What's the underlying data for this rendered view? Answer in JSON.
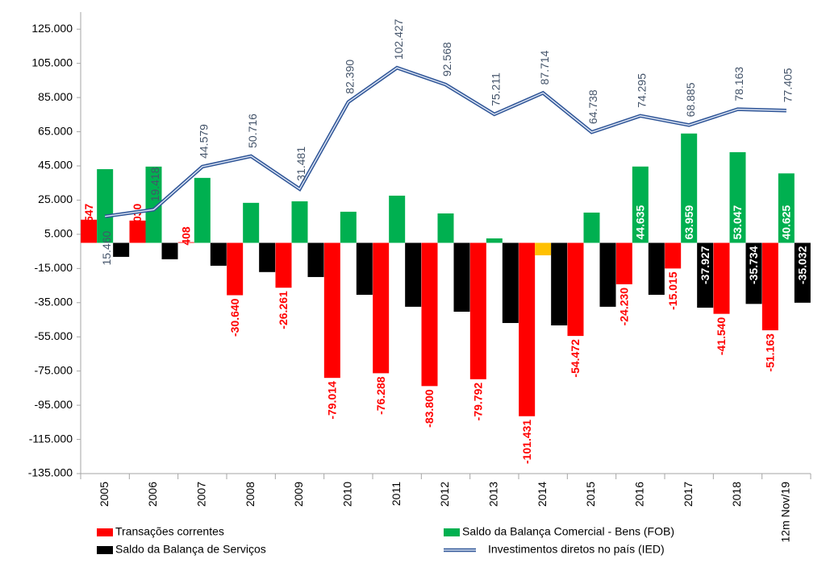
{
  "chart_data": {
    "type": "bar_line",
    "categories": [
      "2005",
      "2006",
      "2007",
      "2008",
      "2009",
      "2010",
      "2011",
      "2012",
      "2013",
      "2014",
      "2015",
      "2016",
      "2017",
      "2018",
      "12m Nov/19"
    ],
    "ylim": [
      -135000,
      135000
    ],
    "yticks": [
      {
        "value": 125000,
        "label": "125.000"
      },
      {
        "value": 105000,
        "label": "105.000"
      },
      {
        "value": 85000,
        "label": "85.000"
      },
      {
        "value": 65000,
        "label": "65.000"
      },
      {
        "value": 45000,
        "label": "45.000"
      },
      {
        "value": 25000,
        "label": "25.000"
      },
      {
        "value": 5000,
        "label": "5.000"
      },
      {
        "value": -15000,
        "label": "-15.000"
      },
      {
        "value": -35000,
        "label": "-35.000"
      },
      {
        "value": -55000,
        "label": "-55.000"
      },
      {
        "value": -75000,
        "label": "-75.000"
      },
      {
        "value": -95000,
        "label": "-95.000"
      },
      {
        "value": -115000,
        "label": "-115.000"
      },
      {
        "value": -135000,
        "label": "-135.000"
      }
    ],
    "grid": false,
    "series": [
      {
        "name": "Transações correntes",
        "type": "bar",
        "color": "#ff0000",
        "label_color": "#ff0000",
        "values": [
          13547,
          13030,
          408,
          -30640,
          -26261,
          -79014,
          -76288,
          -83800,
          -79792,
          -101431,
          -54472,
          -24230,
          -15015,
          -41540,
          -51163
        ],
        "value_labels": [
          "13.547",
          "13.030",
          "408",
          "-30.640",
          "-26.261",
          "-79.014",
          "-76.288",
          "-83.800",
          "-79.792",
          "-101.431",
          "-54.472",
          "-24.230",
          "-15.015",
          "-41.540",
          "-51.163"
        ]
      },
      {
        "name": "Saldo da Balança Comercial - Bens (FOB)",
        "type": "bar",
        "color": "#00b050",
        "label_color": "#ffffff",
        "colors": [
          "#00b050",
          "#00b050",
          "#00b050",
          "#00b050",
          "#00b050",
          "#00b050",
          "#00b050",
          "#00b050",
          "#00b050",
          "#ffc000",
          "#00b050",
          "#00b050",
          "#00b050",
          "#00b050",
          "#00b050"
        ],
        "values": [
          43100,
          44600,
          38000,
          23400,
          24300,
          18200,
          27600,
          17200,
          2600,
          -7300,
          17700,
          44635,
          63959,
          53047,
          40625
        ],
        "value_labels": [
          null,
          null,
          null,
          null,
          null,
          null,
          null,
          null,
          null,
          null,
          null,
          "44.635",
          "63.959",
          "53.047",
          "40.625"
        ]
      },
      {
        "name": "Saldo da Balança de Serviços",
        "type": "bar",
        "color": "#000000",
        "label_color": "#ffffff",
        "values": [
          -8200,
          -9600,
          -13400,
          -17100,
          -20000,
          -30400,
          -37400,
          -40300,
          -46900,
          -48300,
          -37400,
          -30400,
          -37927,
          -35734,
          -35032
        ],
        "value_labels": [
          null,
          null,
          null,
          null,
          null,
          null,
          null,
          null,
          null,
          null,
          null,
          null,
          "-37.927",
          "-35.734",
          "-35.032"
        ]
      },
      {
        "name": "Investimentos diretos no país (IED)",
        "type": "line",
        "color": "#2f5597",
        "label_color": "#44546a",
        "values": [
          15460,
          19418,
          44579,
          50716,
          31481,
          82390,
          102427,
          92568,
          75211,
          87714,
          64738,
          74295,
          68885,
          78163,
          77405
        ],
        "value_labels": [
          "15.460",
          "19.418",
          "44.579",
          "50.716",
          "31.481",
          "82.390",
          "102.427",
          "92.568",
          "75.211",
          "87.714",
          "64.738",
          "74.295",
          "68.885",
          "78.163",
          "77.405"
        ]
      }
    ]
  }
}
